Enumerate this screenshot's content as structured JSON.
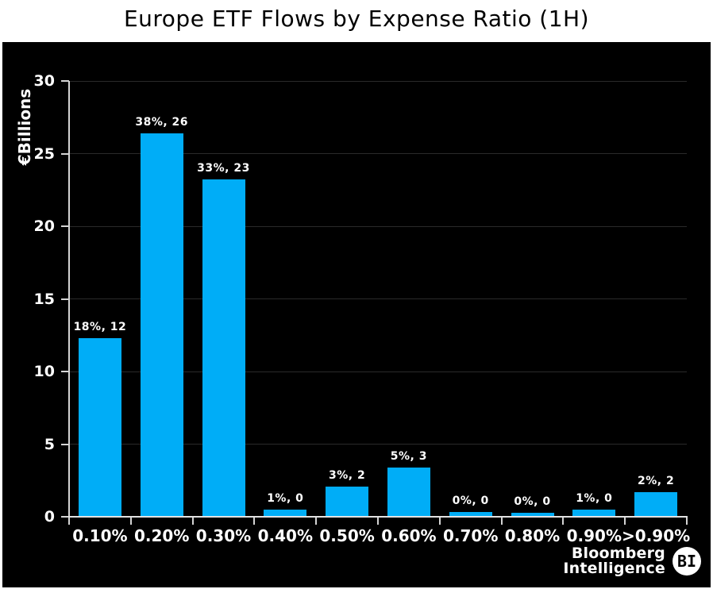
{
  "header": {
    "title": "Europe ETF Flows by Expense Ratio (1H)"
  },
  "chart_data": {
    "type": "bar",
    "title": "Europe ETF Flows by Expense Ratio (1H)",
    "ylabel": "€Billions",
    "xlabel": "",
    "categories": [
      "0.10%",
      "0.20%",
      "0.30%",
      "0.40%",
      "0.50%",
      "0.60%",
      "0.70%",
      "0.80%",
      "0.90%",
      ">0.90%"
    ],
    "values": [
      12.3,
      26.4,
      23.2,
      0.5,
      2.1,
      3.4,
      0.35,
      0.28,
      0.5,
      1.7
    ],
    "point_labels": [
      "18%, 12",
      "38%, 26",
      "33%, 23",
      "1%, 0",
      "3%, 2",
      "5%, 3",
      "0%, 0",
      "0%, 0",
      "1%, 0",
      "2%, 2"
    ],
    "ylim": [
      0,
      30
    ],
    "yticks": [
      0,
      5,
      10,
      15,
      20,
      25,
      30
    ],
    "grid": "horizontal",
    "legend": "none",
    "colors": {
      "bar": "#00ADF7",
      "plot_bg": "#000000",
      "page_bg": "#ffffff",
      "grid": "#2a2a2a",
      "axis": "#d4d4d4",
      "tick_text": "#ffffff",
      "title_text": "#000000"
    }
  },
  "branding": {
    "line1": "Bloomberg",
    "line2": "Intelligence",
    "badge": "BI"
  }
}
